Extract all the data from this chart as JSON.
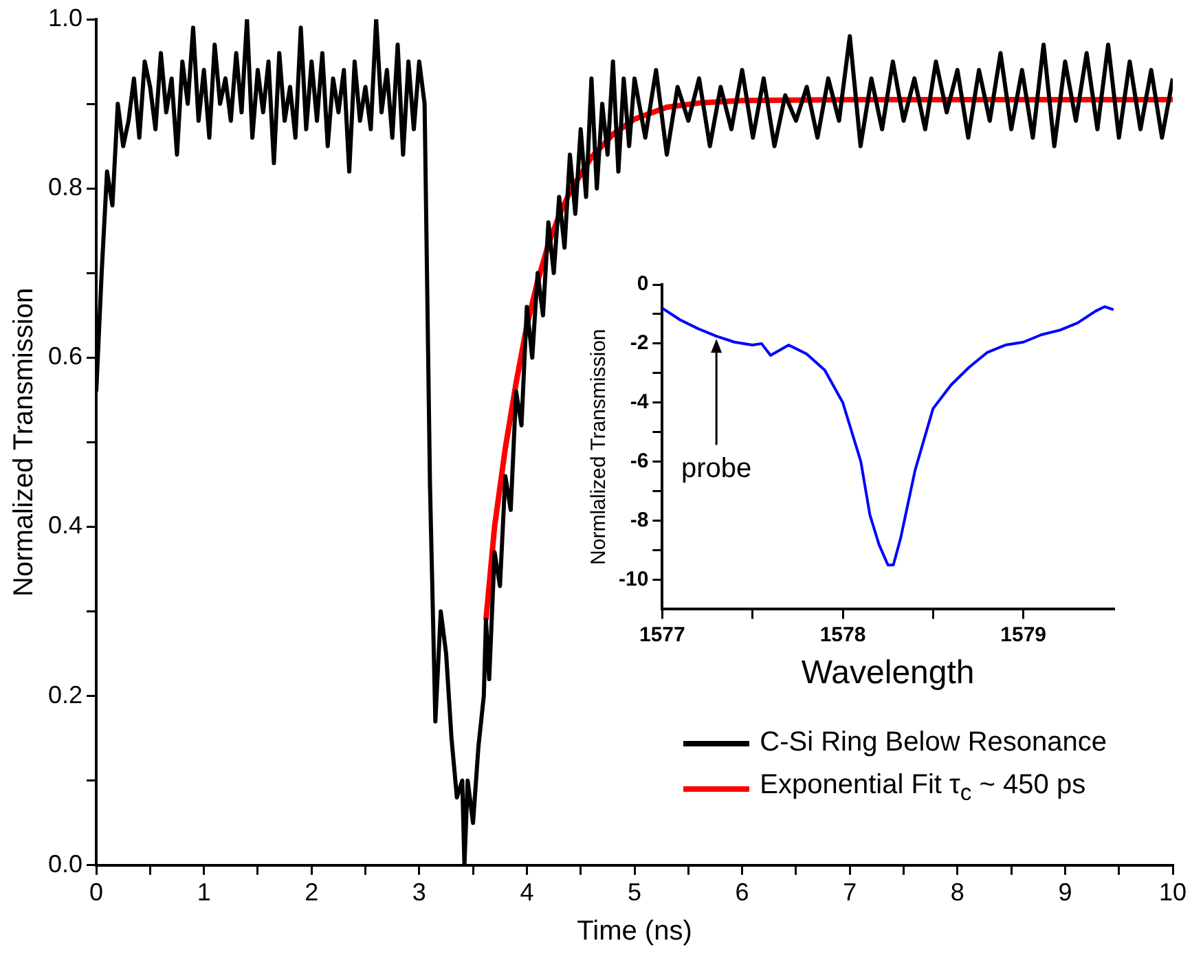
{
  "chart_data": [
    {
      "type": "line",
      "xlabel": "Time (ns)",
      "ylabel": "Normalized Transmission",
      "xlim": [
        0,
        10
      ],
      "ylim": [
        0,
        1
      ],
      "xticks": [
        0,
        {
          "value": 0.5,
          "label": null
        },
        1,
        {
          "value": 1.5,
          "label": null
        },
        2,
        {
          "value": 2.5,
          "label": null
        },
        3,
        {
          "value": 3.5,
          "label": null
        },
        4,
        {
          "value": 4.5,
          "label": null
        },
        5,
        {
          "value": 5.5,
          "label": null
        },
        6,
        {
          "value": 6.5,
          "label": null
        },
        7,
        {
          "value": 7.5,
          "label": null
        },
        8,
        {
          "value": 8.5,
          "label": null
        },
        9,
        {
          "value": 9.5,
          "label": null
        },
        10
      ],
      "yticks": [
        {
          "value": 0,
          "label": "0.0"
        },
        {
          "value": 0.1,
          "label": null
        },
        {
          "value": 0.2,
          "label": "0.2"
        },
        {
          "value": 0.3,
          "label": null
        },
        {
          "value": 0.4,
          "label": "0.4"
        },
        {
          "value": 0.5,
          "label": null
        },
        {
          "value": 0.6,
          "label": "0.6"
        },
        {
          "value": 0.7,
          "label": null
        },
        {
          "value": 0.8,
          "label": "0.8"
        },
        {
          "value": 0.9,
          "label": null
        },
        {
          "value": 1.0,
          "label": "1.0"
        }
      ],
      "grid": false,
      "legend": "bottom right",
      "marker": "none",
      "line_style": "solid",
      "series": [
        {
          "name": "C-Si Ring Below Resonance",
          "color": "#000000",
          "x": [
            0,
            0.05,
            0.1,
            0.15,
            0.2,
            0.25,
            0.3,
            0.35,
            0.4,
            0.45,
            0.5,
            0.55,
            0.6,
            0.65,
            0.7,
            0.75,
            0.8,
            0.85,
            0.9,
            0.95,
            1.0,
            1.05,
            1.1,
            1.15,
            1.2,
            1.25,
            1.3,
            1.35,
            1.4,
            1.45,
            1.5,
            1.55,
            1.6,
            1.65,
            1.7,
            1.75,
            1.8,
            1.85,
            1.9,
            1.95,
            2.0,
            2.05,
            2.1,
            2.15,
            2.2,
            2.25,
            2.3,
            2.35,
            2.4,
            2.45,
            2.5,
            2.55,
            2.6,
            2.65,
            2.7,
            2.75,
            2.8,
            2.85,
            2.9,
            2.95,
            3.0,
            3.05,
            3.1,
            3.15,
            3.2,
            3.25,
            3.3,
            3.35,
            3.4,
            3.42,
            3.45,
            3.5,
            3.55,
            3.6,
            3.62,
            3.65,
            3.7,
            3.75,
            3.8,
            3.85,
            3.9,
            3.95,
            4.0,
            4.05,
            4.1,
            4.15,
            4.2,
            4.25,
            4.3,
            4.35,
            4.4,
            4.45,
            4.5,
            4.55,
            4.6,
            4.65,
            4.7,
            4.75,
            4.8,
            4.85,
            4.9,
            4.95,
            5.0,
            5.1,
            5.2,
            5.3,
            5.4,
            5.5,
            5.6,
            5.7,
            5.8,
            5.9,
            6.0,
            6.1,
            6.2,
            6.3,
            6.4,
            6.5,
            6.6,
            6.7,
            6.8,
            6.9,
            7.0,
            7.1,
            7.2,
            7.3,
            7.4,
            7.5,
            7.6,
            7.7,
            7.8,
            7.9,
            8.0,
            8.1,
            8.2,
            8.3,
            8.4,
            8.5,
            8.6,
            8.7,
            8.8,
            8.9,
            9.0,
            9.1,
            9.2,
            9.3,
            9.4,
            9.5,
            9.6,
            9.7,
            9.8,
            9.9,
            10.0
          ],
          "values": [
            0.56,
            0.7,
            0.82,
            0.78,
            0.9,
            0.85,
            0.88,
            0.93,
            0.86,
            0.95,
            0.92,
            0.87,
            0.96,
            0.89,
            0.93,
            0.84,
            0.95,
            0.9,
            0.99,
            0.88,
            0.94,
            0.86,
            0.97,
            0.9,
            0.93,
            0.88,
            0.96,
            0.89,
            1.0,
            0.86,
            0.94,
            0.89,
            0.95,
            0.83,
            0.96,
            0.88,
            0.92,
            0.86,
            0.99,
            0.87,
            0.95,
            0.88,
            0.96,
            0.85,
            0.93,
            0.89,
            0.94,
            0.82,
            0.95,
            0.88,
            0.92,
            0.87,
            1.0,
            0.89,
            0.94,
            0.86,
            0.97,
            0.84,
            0.95,
            0.87,
            0.95,
            0.9,
            0.45,
            0.17,
            0.3,
            0.25,
            0.15,
            0.08,
            0.1,
            0.0,
            0.1,
            0.05,
            0.14,
            0.2,
            0.29,
            0.22,
            0.37,
            0.33,
            0.46,
            0.42,
            0.56,
            0.52,
            0.66,
            0.6,
            0.7,
            0.65,
            0.76,
            0.7,
            0.79,
            0.73,
            0.84,
            0.77,
            0.87,
            0.79,
            0.93,
            0.8,
            0.9,
            0.84,
            0.95,
            0.82,
            0.93,
            0.85,
            0.93,
            0.86,
            0.94,
            0.84,
            0.92,
            0.88,
            0.93,
            0.85,
            0.92,
            0.87,
            0.94,
            0.86,
            0.93,
            0.85,
            0.91,
            0.88,
            0.92,
            0.86,
            0.93,
            0.88,
            0.98,
            0.85,
            0.93,
            0.87,
            0.95,
            0.88,
            0.93,
            0.87,
            0.95,
            0.89,
            0.94,
            0.86,
            0.94,
            0.88,
            0.96,
            0.87,
            0.94,
            0.86,
            0.97,
            0.85,
            0.95,
            0.88,
            0.96,
            0.87,
            0.97,
            0.86,
            0.95,
            0.87,
            0.94,
            0.86,
            0.93
          ]
        },
        {
          "name": "Exponential Fit τ$_{c}$ ~ 450 ps",
          "color": "#ff0000",
          "x": [
            3.62,
            3.7,
            3.8,
            3.9,
            4.0,
            4.1,
            4.2,
            4.3,
            4.4,
            4.6,
            4.8,
            5.0,
            5.3,
            5.6,
            6.0,
            7.0,
            8.0,
            10.0
          ],
          "values": [
            0.29,
            0.4,
            0.493,
            0.57,
            0.638,
            0.69,
            0.734,
            0.768,
            0.796,
            0.837,
            0.864,
            0.882,
            0.896,
            0.901,
            0.904,
            0.905,
            0.905,
            0.905
          ]
        }
      ]
    },
    {
      "type": "line",
      "xlabel": "Wavelength",
      "ylabel": "Normlalized Transmission",
      "xlim": [
        1577,
        1579.5
      ],
      "ylim": [
        -11,
        0
      ],
      "xticks": [
        1577,
        {
          "value": 1577.5,
          "label": null
        },
        1578,
        {
          "value": 1578.5,
          "label": null
        },
        1579
      ],
      "yticks": [
        0,
        {
          "value": -1,
          "label": null
        },
        -2,
        {
          "value": -3,
          "label": null
        },
        -4,
        {
          "value": -5,
          "label": null
        },
        -6,
        {
          "value": -7,
          "label": null
        },
        -8,
        {
          "value": -9,
          "label": null
        },
        -10
      ],
      "grid": false,
      "marker": "none",
      "line_style": "solid",
      "annotations": [
        {
          "text": "probe",
          "x": 1577.3,
          "y": -1.8
        }
      ],
      "series": [
        {
          "color": "#0000ff",
          "x": [
            1577,
            1577.1,
            1577.2,
            1577.3,
            1577.4,
            1577.5,
            1577.55,
            1577.6,
            1577.7,
            1577.8,
            1577.9,
            1578.0,
            1578.1,
            1578.15,
            1578.2,
            1578.25,
            1578.28,
            1578.32,
            1578.4,
            1578.5,
            1578.6,
            1578.7,
            1578.8,
            1578.9,
            1579.0,
            1579.1,
            1579.2,
            1579.3,
            1579.4,
            1579.45,
            1579.5
          ],
          "values": [
            -0.8,
            -1.2,
            -1.5,
            -1.75,
            -1.95,
            -2.05,
            -2.0,
            -2.4,
            -2.05,
            -2.35,
            -2.9,
            -4.0,
            -6.0,
            -7.8,
            -8.8,
            -9.5,
            -9.5,
            -8.6,
            -6.3,
            -4.2,
            -3.4,
            -2.8,
            -2.3,
            -2.05,
            -1.95,
            -1.7,
            -1.55,
            -1.3,
            -0.9,
            -0.75,
            -0.85
          ]
        }
      ]
    }
  ]
}
